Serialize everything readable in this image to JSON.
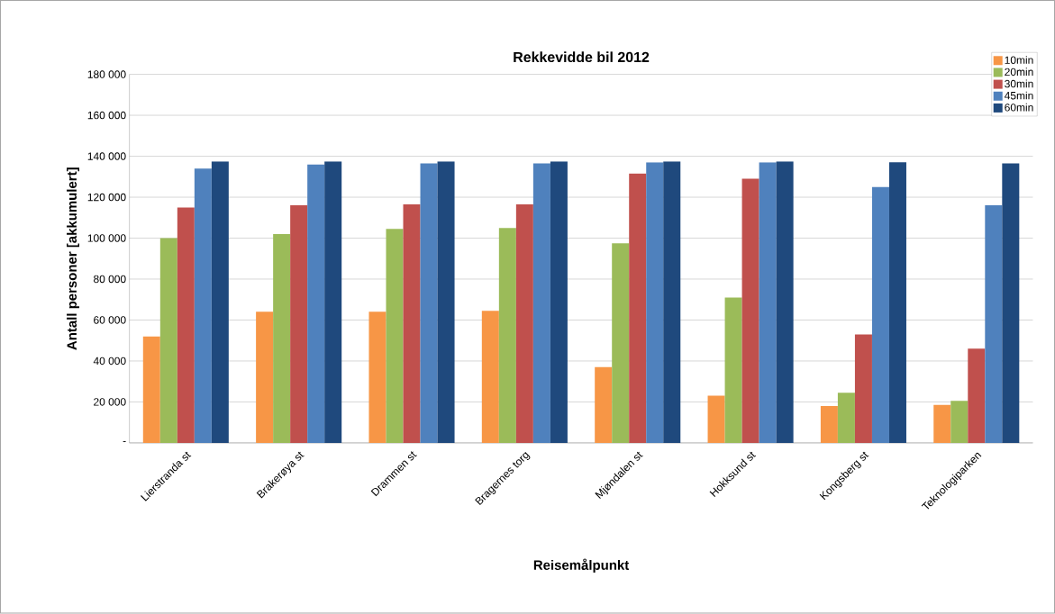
{
  "chart_data": {
    "type": "bar",
    "title": "Rekkevidde bil 2012",
    "xlabel": "Reisemålpunkt",
    "ylabel": "Antall personer [akkumulert]",
    "categories": [
      "Lierstranda st",
      "Brakerøya st",
      "Drammen st",
      "Bragernes torg",
      "Mjøndalen st",
      "Hokksund st",
      "Kongsberg st",
      "Teknologiparken"
    ],
    "series": [
      {
        "name": "10min",
        "color": "#f79646",
        "values": [
          52000,
          64000,
          64000,
          64500,
          37000,
          23000,
          18000,
          18500
        ]
      },
      {
        "name": "20min",
        "color": "#9bbb59",
        "values": [
          100000,
          102000,
          104500,
          105000,
          97500,
          71000,
          24500,
          20500
        ]
      },
      {
        "name": "30min",
        "color": "#c0504d",
        "values": [
          115000,
          116000,
          116500,
          116500,
          131500,
          129000,
          53000,
          46000
        ]
      },
      {
        "name": "45min",
        "color": "#4f81bd",
        "values": [
          134000,
          136000,
          136500,
          136500,
          137000,
          137000,
          125000,
          116000
        ]
      },
      {
        "name": "60min",
        "color": "#1f497d",
        "values": [
          137500,
          137500,
          137500,
          137500,
          137500,
          137500,
          137000,
          136500
        ]
      }
    ],
    "ylim": [
      0,
      180000
    ],
    "yticks": [
      {
        "value": 0,
        "label": "-"
      },
      {
        "value": 20000,
        "label": "20 000"
      },
      {
        "value": 40000,
        "label": "40 000"
      },
      {
        "value": 60000,
        "label": "60 000"
      },
      {
        "value": 80000,
        "label": "80 000"
      },
      {
        "value": 100000,
        "label": "100 000"
      },
      {
        "value": 120000,
        "label": "120 000"
      },
      {
        "value": 140000,
        "label": "140 000"
      },
      {
        "value": 160000,
        "label": "160 000"
      },
      {
        "value": 180000,
        "label": "180 000"
      }
    ],
    "grid": "y",
    "legend": "top right"
  }
}
